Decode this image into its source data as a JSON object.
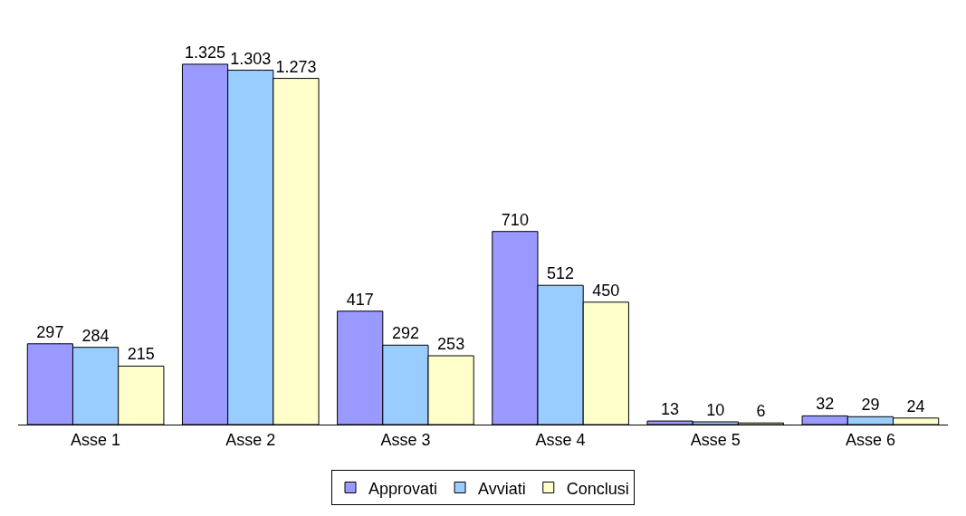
{
  "chart_data": {
    "type": "bar",
    "categories": [
      "Asse 1",
      "Asse 2",
      "Asse 3",
      "Asse 4",
      "Asse 5",
      "Asse 6"
    ],
    "series": [
      {
        "name": "Approvati",
        "color": "#9999ff",
        "values": [
          297,
          1325,
          417,
          710,
          13,
          32
        ],
        "value_labels": [
          "297",
          "1.325",
          "417",
          "710",
          "13",
          "32"
        ]
      },
      {
        "name": "Avviati",
        "color": "#99ccff",
        "values": [
          284,
          1303,
          292,
          512,
          10,
          29
        ],
        "value_labels": [
          "284",
          "1.303",
          "292",
          "512",
          "10",
          "29"
        ]
      },
      {
        "name": "Conclusi",
        "color": "#ffffcc",
        "values": [
          215,
          1273,
          253,
          450,
          6,
          24
        ],
        "value_labels": [
          "215",
          "1.273",
          "253",
          "450",
          "6",
          "24"
        ]
      }
    ],
    "legend": "bottom"
  }
}
